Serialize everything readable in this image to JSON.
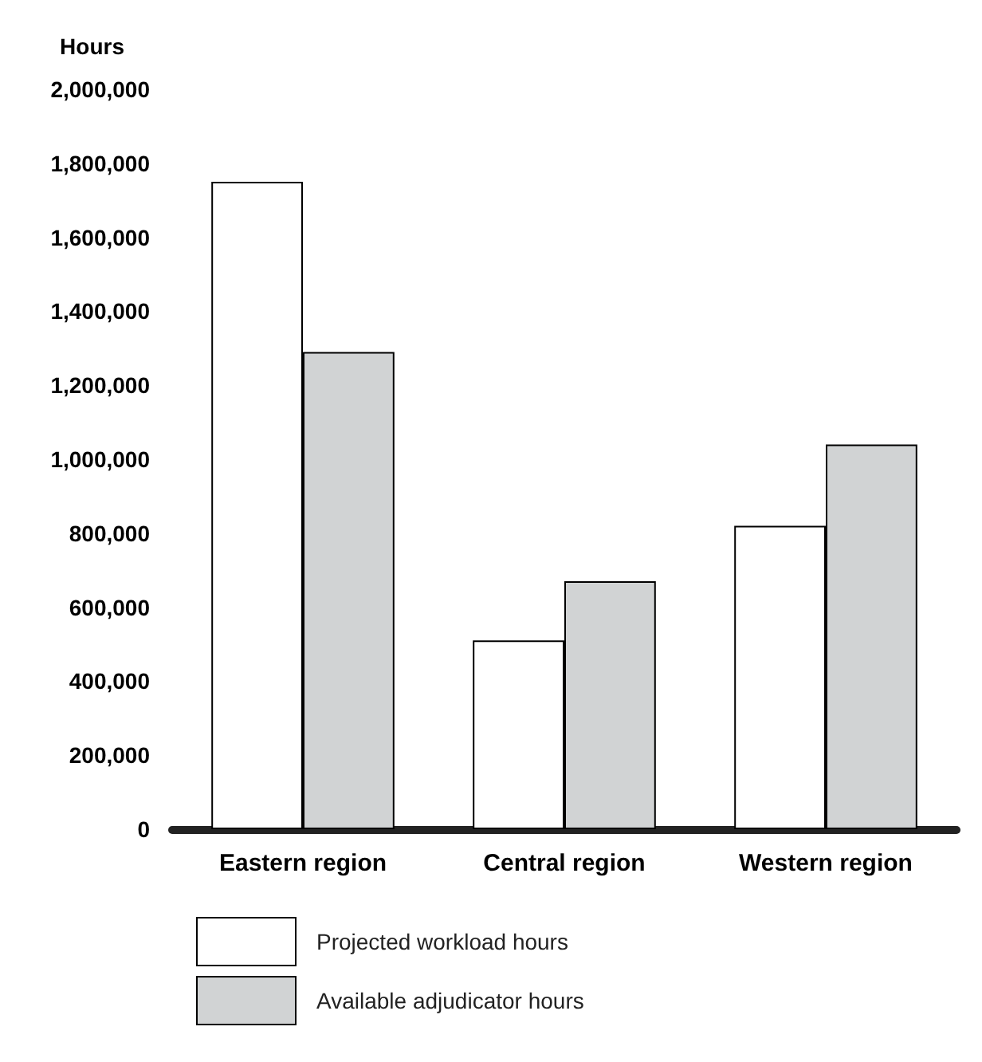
{
  "chart_data": {
    "type": "bar",
    "ylabel": "Hours",
    "categories": [
      "Eastern region",
      "Central region",
      "Western region"
    ],
    "series": [
      {
        "name": "Projected workload hours",
        "color": "#ffffff",
        "values": [
          1750000,
          510000,
          820000
        ]
      },
      {
        "name": "Available adjudicator hours",
        "color": "#d1d3d4",
        "values": [
          1290000,
          670000,
          1040000
        ]
      }
    ],
    "ylim": [
      0,
      2000000
    ],
    "yticks": [
      0,
      {
        "value": 200000,
        "label": "200,000"
      },
      {
        "value": 400000,
        "label": "400,000"
      },
      {
        "value": 600000,
        "label": "600,000"
      },
      {
        "value": 800000,
        "label": "800,000"
      },
      {
        "value": 1000000,
        "label": "1,000,000"
      },
      {
        "value": 1200000,
        "label": "1,200,000"
      },
      {
        "value": 1400000,
        "label": "1,400,000"
      },
      {
        "value": 1600000,
        "label": "1,600,000"
      },
      {
        "value": 1800000,
        "label": "1,800,000"
      },
      {
        "value": 2000000,
        "label": "2,000,000"
      }
    ],
    "grid": false,
    "legend": "bottom left"
  }
}
